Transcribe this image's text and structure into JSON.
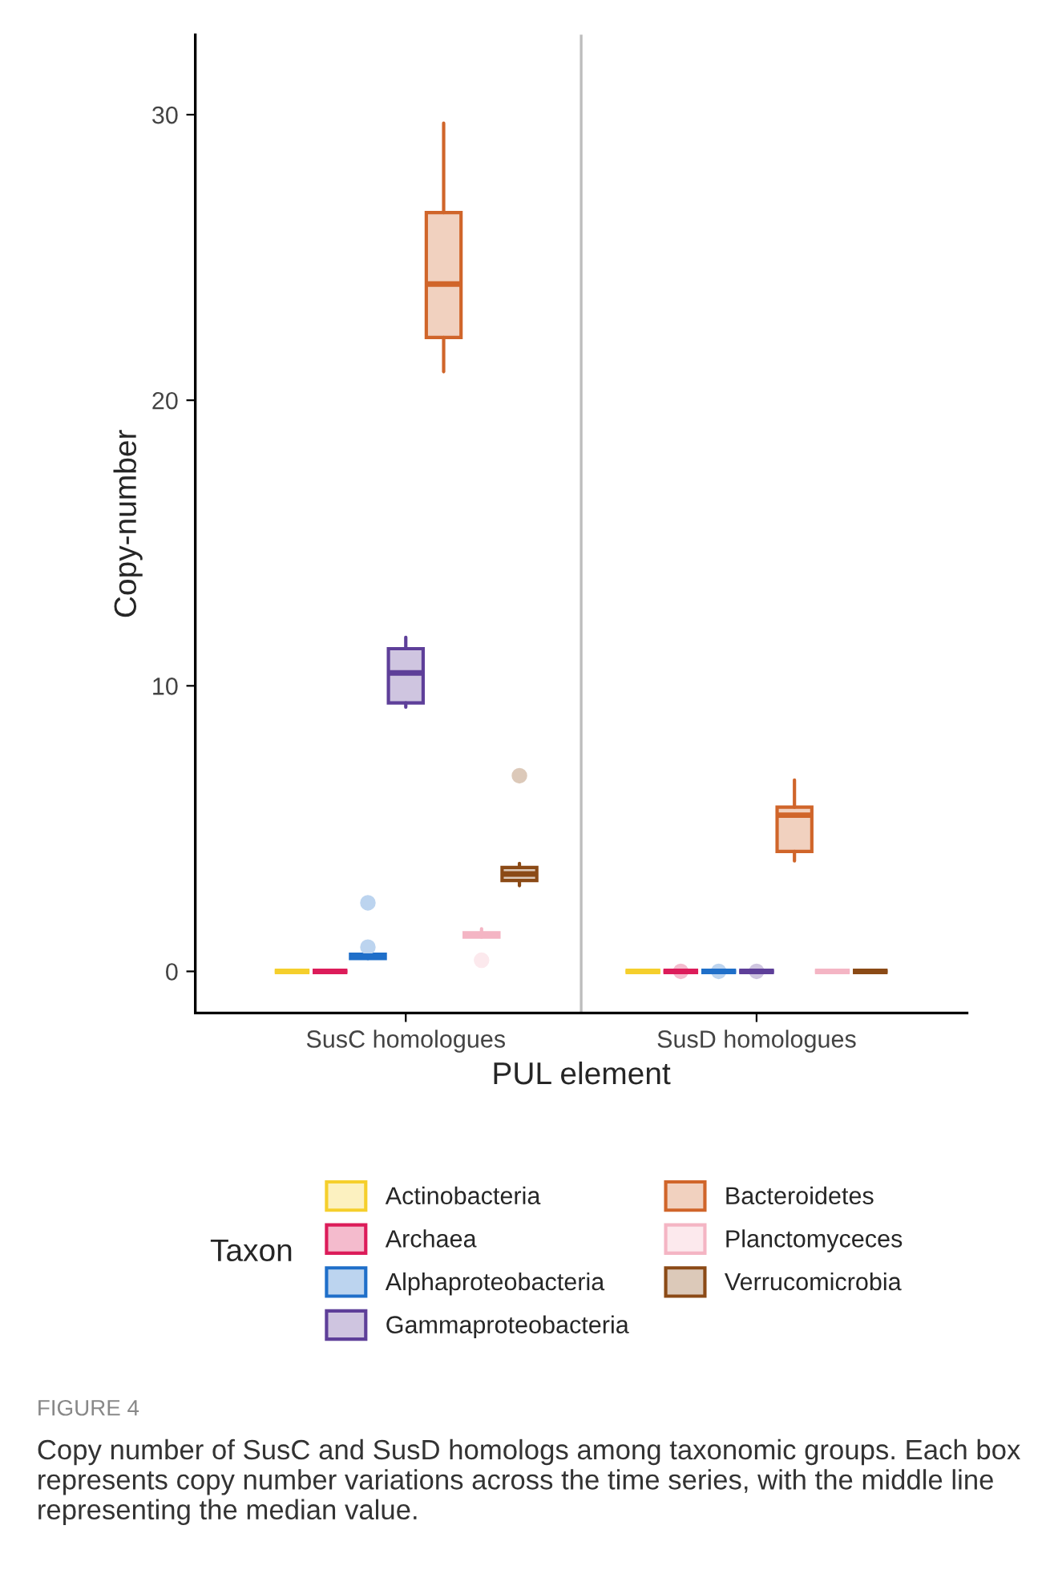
{
  "chart_data": {
    "type": "box",
    "xlabel": "PUL element",
    "ylabel": "Copy-number",
    "legend_title": "Taxon",
    "categories": [
      "SusC homologues",
      "SusD homologues"
    ],
    "ylim": [
      -1.46,
      32.8
    ],
    "yticks": [
      0,
      10,
      20,
      30
    ],
    "grid": false,
    "legend": "bottom",
    "series": [
      {
        "name": "Actinobacteria",
        "color": "#f5cf2c",
        "boxes": [
          {
            "low": 0,
            "q1": 0,
            "median": 0,
            "q3": 0,
            "high": 0
          },
          {
            "low": 0,
            "q1": 0,
            "median": 0,
            "q3": 0,
            "high": 0
          }
        ]
      },
      {
        "name": "Archaea",
        "color": "#dc1c5a",
        "boxes": [
          {
            "low": 0,
            "q1": 0,
            "median": 0,
            "q3": 0,
            "high": 0
          },
          {
            "low": 0,
            "q1": 0,
            "median": 0,
            "q3": 0,
            "high": 0,
            "outliers": [
              0
            ]
          }
        ]
      },
      {
        "name": "Alphaproteobacteria",
        "color": "#1f6fc9",
        "boxes": [
          {
            "low": 0.45,
            "q1": 0.45,
            "median": 0.53,
            "q3": 0.6,
            "high": 0.6,
            "outliers": [
              0.85,
              2.4
            ]
          },
          {
            "low": 0,
            "q1": 0,
            "median": 0,
            "q3": 0,
            "high": 0,
            "outliers": [
              0
            ]
          }
        ]
      },
      {
        "name": "Gammaproteobacteria",
        "color": "#5e3f99",
        "boxes": [
          {
            "low": 9.25,
            "q1": 9.4,
            "median": 10.45,
            "q3": 11.3,
            "high": 11.7
          },
          {
            "low": 0,
            "q1": 0,
            "median": 0,
            "q3": 0,
            "high": 0,
            "outliers": [
              0
            ]
          }
        ]
      },
      {
        "name": "Bacteroidetes",
        "color": "#d0652a",
        "boxes": [
          {
            "low": 21.0,
            "q1": 22.2,
            "median": 24.07,
            "q3": 26.57,
            "high": 29.7
          },
          {
            "low": 3.87,
            "q1": 4.2,
            "median": 5.47,
            "q3": 5.75,
            "high": 6.7
          }
        ]
      },
      {
        "name": "Planctomyceces",
        "color": "#f4b5c4",
        "boxes": [
          {
            "low": 1.2,
            "q1": 1.2,
            "median": 1.28,
            "q3": 1.35,
            "high": 1.49,
            "outliers": [
              0.39
            ]
          },
          {
            "low": 0,
            "q1": 0,
            "median": 0,
            "q3": 0,
            "high": 0
          }
        ]
      },
      {
        "name": "Verrucomicrobia",
        "color": "#8b4a16",
        "boxes": [
          {
            "low": 3.0,
            "q1": 3.18,
            "median": 3.41,
            "q3": 3.64,
            "high": 3.78,
            "outliers": [
              6.85
            ]
          },
          {
            "low": 0,
            "q1": 0,
            "median": 0,
            "q3": 0,
            "high": 0
          }
        ]
      }
    ],
    "annotations": [
      "FIGURE 4",
      "Copy number of SusC and SusD homologs among taxonomic groups. Each box represents copy number variations across the time series, with the middle line representing the median value."
    ]
  }
}
